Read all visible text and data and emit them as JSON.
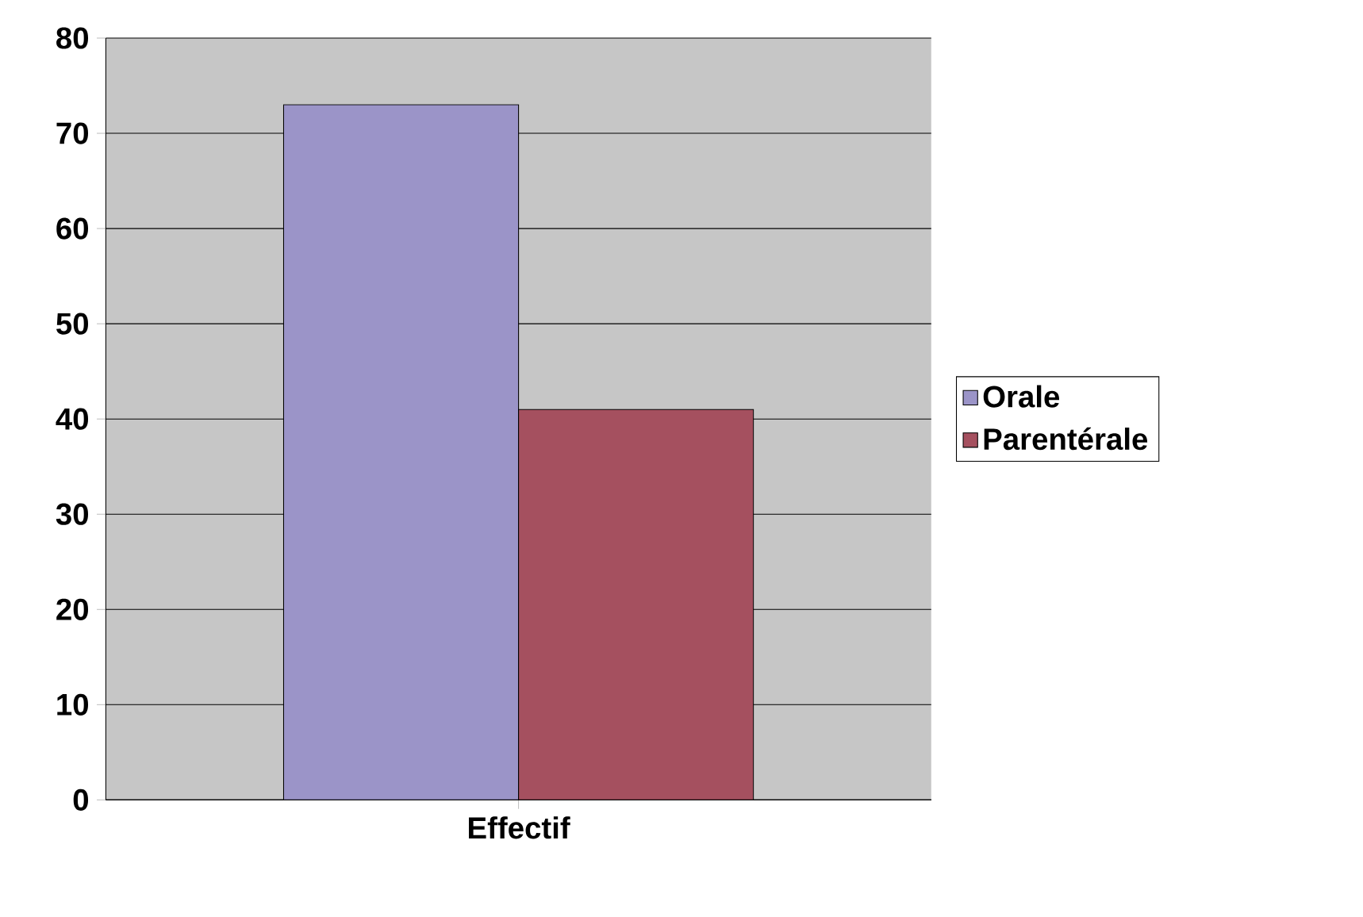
{
  "chart_data": {
    "type": "bar",
    "categories": [
      "Effectif"
    ],
    "series": [
      {
        "name": "Orale",
        "color": "#9b94c8",
        "values": [
          73
        ]
      },
      {
        "name": "Parentérale",
        "color": "#a5505f",
        "values": [
          41
        ]
      }
    ],
    "ylim": [
      0,
      80
    ],
    "yticks": [
      0,
      10,
      20,
      30,
      40,
      50,
      60,
      70,
      80
    ],
    "grid": "y",
    "legend": "right"
  }
}
